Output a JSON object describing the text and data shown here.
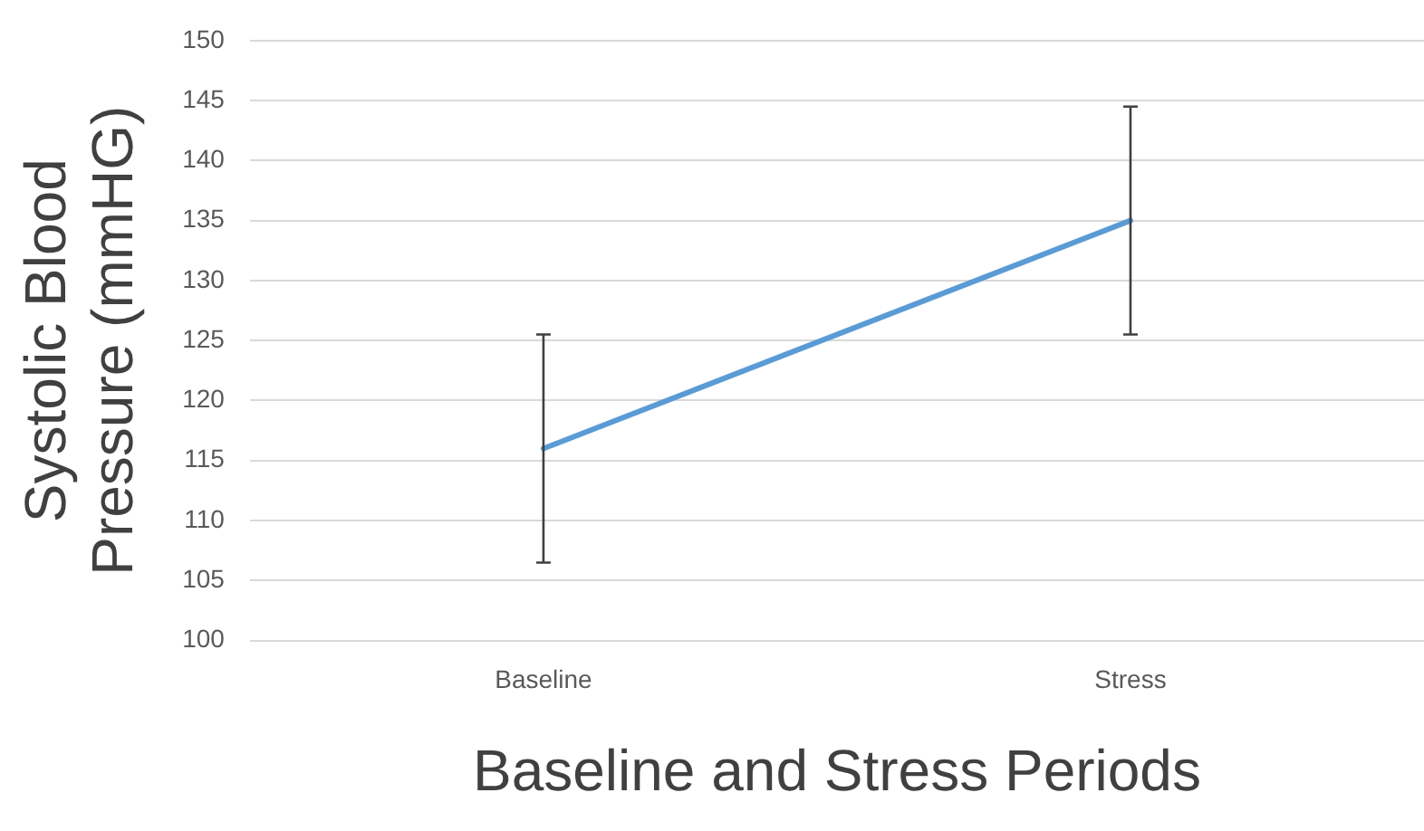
{
  "chart_data": {
    "type": "line",
    "xlabel": "Baseline and Stress Periods",
    "ylabel": "Systolic Blood Pressure (mmHG)",
    "categories": [
      "Baseline",
      "Stress"
    ],
    "series": [
      {
        "color": "#5b9bd5",
        "values": [
          116,
          135
        ],
        "errors": [
          [
            106.5,
            125.5
          ],
          [
            125.5,
            144.5
          ]
        ]
      }
    ],
    "ylim": [
      100,
      150
    ],
    "yticks": [
      100,
      105,
      110,
      115,
      120,
      125,
      130,
      135,
      140,
      145,
      150
    ],
    "grid": "y",
    "legend": false,
    "marker": "none"
  }
}
